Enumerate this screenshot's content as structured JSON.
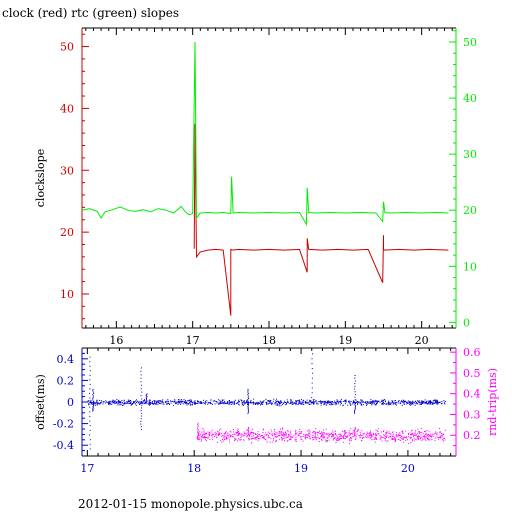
{
  "page": {
    "title": "clock (red) rtc (green) slopes",
    "footer": "2012-01-15 monopole.physics.ubc.ca"
  },
  "colors": {
    "clock": "#cc0000",
    "rtc": "#00ee00",
    "offset": "#0000cc",
    "rndtrip": "#ff00ff",
    "axes": "#000000"
  },
  "chart_data": [
    {
      "type": "line",
      "title": "clock (red) rtc (green) slopes",
      "ylabel": "clockslope",
      "y2label": "",
      "xlim": [
        15.55,
        20.45
      ],
      "ylim": [
        4.5,
        53.0
      ],
      "y2lim": [
        -1.0,
        52.5
      ],
      "xticks": [
        16,
        17,
        18,
        19,
        20
      ],
      "yticks": [
        10,
        20,
        30,
        40,
        50
      ],
      "y2ticks": [
        0,
        10,
        20,
        30,
        40,
        50
      ],
      "grid": false,
      "series": [
        {
          "name": "clock",
          "axis": "left",
          "x": [
            17.02,
            17.03,
            17.05,
            17.1,
            17.2,
            17.3,
            17.4,
            17.5,
            17.5,
            17.52,
            17.6,
            17.8,
            18.0,
            18.2,
            18.4,
            18.5,
            18.5,
            18.52,
            18.7,
            18.9,
            19.1,
            19.3,
            19.49,
            19.5,
            19.5,
            19.52,
            19.7,
            19.9,
            20.1,
            20.35
          ],
          "values": [
            17.3,
            37.5,
            16.0,
            16.8,
            17.1,
            17.2,
            17.1,
            6.5,
            17.2,
            17.1,
            17.2,
            17.1,
            17.2,
            17.1,
            17.2,
            13.5,
            19.0,
            17.2,
            17.1,
            17.2,
            17.1,
            17.2,
            11.8,
            19.5,
            17.2,
            17.1,
            17.2,
            17.1,
            17.2,
            17.1
          ]
        },
        {
          "name": "rtc",
          "axis": "right",
          "x": [
            15.45,
            15.55,
            15.65,
            15.75,
            15.8,
            15.85,
            15.95,
            16.05,
            16.15,
            16.25,
            16.35,
            16.45,
            16.55,
            16.65,
            16.75,
            16.8,
            16.85,
            16.9,
            16.95,
            17.0,
            17.03,
            17.05,
            17.1,
            17.2,
            17.3,
            17.4,
            17.5,
            17.51,
            17.53,
            17.6,
            17.8,
            18.0,
            18.2,
            18.4,
            18.49,
            18.5,
            18.52,
            18.6,
            18.8,
            19.0,
            19.2,
            19.4,
            19.49,
            19.5,
            19.52,
            19.6,
            19.8,
            20.0,
            20.2,
            20.35
          ],
          "values": [
            19.8,
            20.0,
            20.3,
            19.8,
            18.6,
            19.7,
            20.1,
            20.6,
            20.0,
            19.8,
            20.1,
            19.7,
            20.3,
            20.0,
            19.5,
            20.1,
            20.7,
            19.8,
            19.2,
            19.4,
            50.0,
            18.6,
            19.5,
            19.6,
            19.5,
            19.6,
            19.4,
            26.0,
            19.5,
            19.6,
            19.5,
            19.6,
            19.5,
            19.6,
            17.5,
            24.0,
            19.6,
            19.5,
            19.6,
            19.5,
            19.6,
            19.5,
            18.0,
            21.5,
            19.6,
            19.5,
            19.6,
            19.5,
            19.6,
            19.5
          ]
        }
      ]
    },
    {
      "type": "scatter",
      "ylabel": "offset(ms)",
      "y2label": "rnd-trip(ms)",
      "xlim": [
        16.95,
        20.45
      ],
      "ylim": [
        -0.5,
        0.5
      ],
      "y2lim": [
        0.1,
        0.62
      ],
      "xticks": [
        17,
        18,
        19,
        20
      ],
      "yticks": [
        -0.4,
        -0.2,
        0,
        0.2,
        0.4
      ],
      "y2ticks": [
        0.2,
        0.3,
        0.4,
        0.5,
        0.6
      ],
      "grid": false,
      "series": [
        {
          "name": "offset",
          "axis": "left",
          "x_range": [
            17.0,
            20.35
          ],
          "baseline": 0.0,
          "noise": 0.015,
          "spikes": [
            {
              "x": 17.02,
              "y": [
                0.42,
                -0.43
              ]
            },
            {
              "x": 17.05,
              "y": [
                0.12,
                -0.08
              ]
            },
            {
              "x": 17.5,
              "y": [
                0.32,
                -0.25
              ]
            },
            {
              "x": 17.55,
              "y": [
                0.08
              ]
            },
            {
              "x": 18.5,
              "y": [
                0.12,
                -0.1
              ]
            },
            {
              "x": 19.5,
              "y": [
                0.25,
                -0.1
              ]
            },
            {
              "x": 19.1,
              "y": [
                0.45
              ]
            }
          ]
        },
        {
          "name": "rnd-trip",
          "axis": "right",
          "x_range": [
            18.02,
            20.35
          ],
          "baseline": 0.2,
          "noise": 0.018,
          "spikes": [
            {
              "x": 18.03,
              "y": [
                0.26
              ]
            },
            {
              "x": 18.5,
              "y": [
                0.24
              ]
            },
            {
              "x": 19.5,
              "y": [
                0.24
              ]
            }
          ]
        }
      ]
    }
  ]
}
